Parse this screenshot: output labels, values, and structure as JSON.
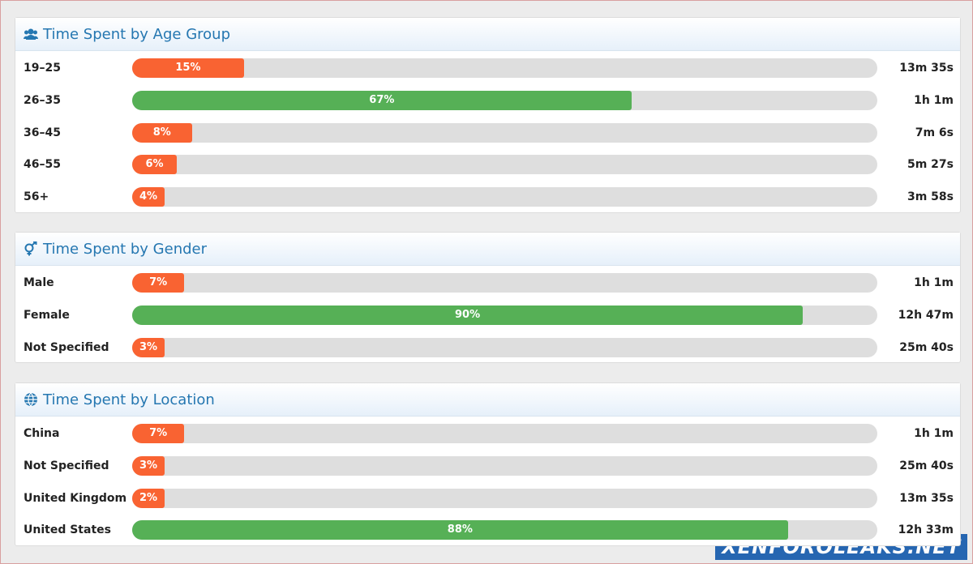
{
  "panels": [
    {
      "title": "Time Spent by Age Group",
      "rows": [
        {
          "label": "19–25",
          "value": 15,
          "value_label": "15%",
          "color": "#f96332",
          "time": "13m 35s"
        },
        {
          "label": "26–35",
          "value": 67,
          "value_label": "67%",
          "color": "#56b056",
          "time": "1h 1m"
        },
        {
          "label": "36–45",
          "value": 8,
          "value_label": "8%",
          "color": "#f96332",
          "time": "7m 6s"
        },
        {
          "label": "46–55",
          "value": 6,
          "value_label": "6%",
          "color": "#f96332",
          "time": "5m 27s"
        },
        {
          "label": "56+",
          "value": 4,
          "value_label": "4%",
          "color": "#f96332",
          "time": "3m 58s"
        }
      ]
    },
    {
      "title": "Time Spent by Gender",
      "rows": [
        {
          "label": "Male",
          "value": 7,
          "value_label": "7%",
          "color": "#f96332",
          "time": "1h 1m"
        },
        {
          "label": "Female",
          "value": 90,
          "value_label": "90%",
          "color": "#56b056",
          "time": "12h 47m"
        },
        {
          "label": "Not Specified",
          "value": 3,
          "value_label": "3%",
          "color": "#f96332",
          "time": "25m 40s"
        }
      ]
    },
    {
      "title": "Time Spent by Location",
      "rows": [
        {
          "label": "China",
          "value": 7,
          "value_label": "7%",
          "color": "#f96332",
          "time": "1h 1m"
        },
        {
          "label": "Not Specified",
          "value": 3,
          "value_label": "3%",
          "color": "#f96332",
          "time": "25m 40s"
        },
        {
          "label": "United Kingdom",
          "value": 2,
          "value_label": "2%",
          "color": "#f96332",
          "time": "13m 35s"
        },
        {
          "label": "United States",
          "value": 88,
          "value_label": "88%",
          "color": "#56b056",
          "time": "12h 33m"
        }
      ]
    }
  ],
  "watermark": "XENFOROLEAKS.NET"
}
